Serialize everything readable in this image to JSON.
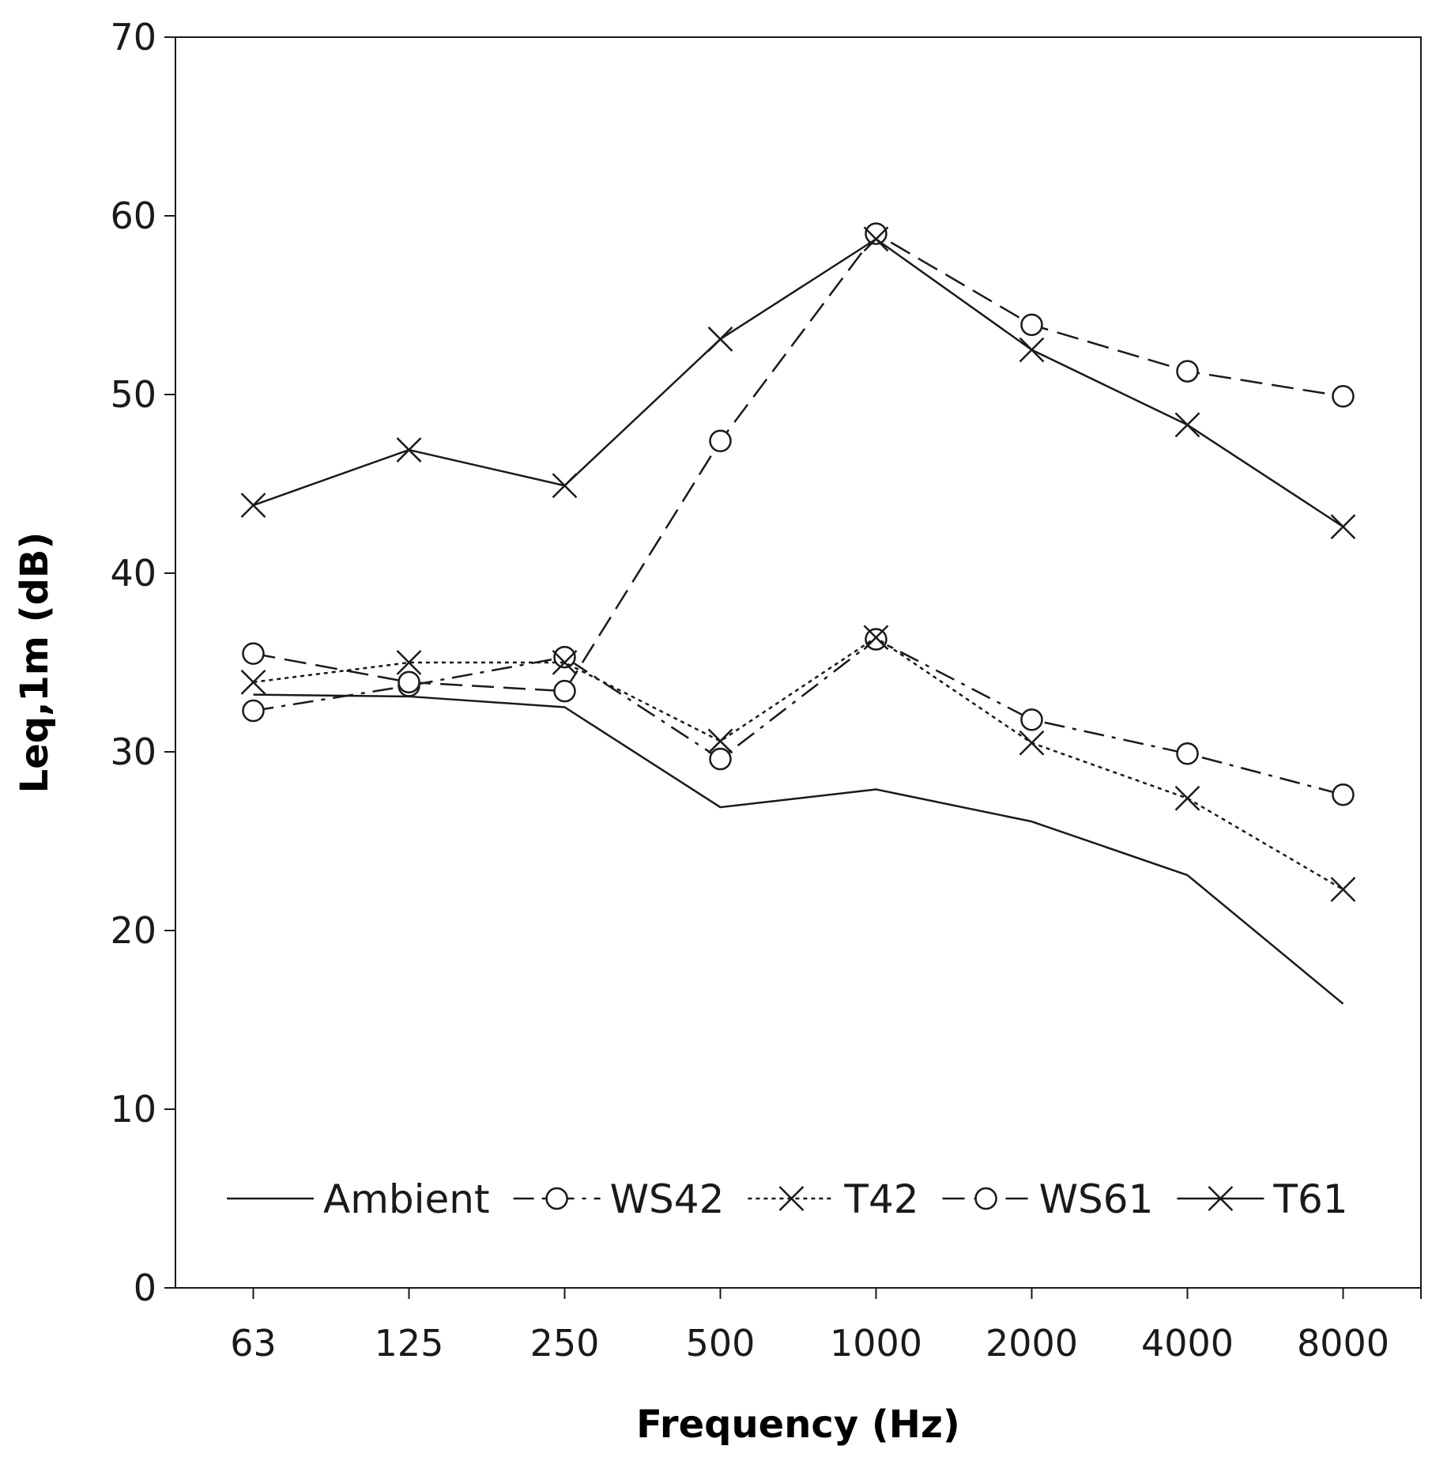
{
  "chart_data": {
    "type": "line",
    "xlabel": "Frequency (Hz)",
    "ylabel": "Leq,1m (dB)",
    "ylim": [
      0,
      70
    ],
    "yticks": [
      0,
      10,
      20,
      30,
      40,
      50,
      60,
      70
    ],
    "categories": [
      "63",
      "125",
      "250",
      "500",
      "1000",
      "2000",
      "4000",
      "8000"
    ],
    "grid": false,
    "legend_position": "bottom-inside",
    "series": [
      {
        "name": "Ambient",
        "values": [
          33.2,
          33.1,
          32.5,
          26.9,
          27.9,
          26.1,
          23.1,
          15.9
        ],
        "marker": "none",
        "dash": "solid"
      },
      {
        "name": "WS42",
        "values": [
          32.3,
          33.7,
          35.3,
          29.6,
          36.3,
          31.8,
          29.9,
          27.6
        ],
        "marker": "circle",
        "dash": "dashdot"
      },
      {
        "name": "T42",
        "values": [
          33.9,
          35.0,
          35.0,
          30.6,
          36.4,
          30.5,
          27.4,
          22.3
        ],
        "marker": "x",
        "dash": "dotted"
      },
      {
        "name": "WS61",
        "values": [
          35.5,
          33.9,
          33.4,
          47.4,
          59.0,
          53.9,
          51.3,
          49.9
        ],
        "marker": "circle",
        "dash": "longdash"
      },
      {
        "name": "T61",
        "values": [
          43.8,
          46.9,
          44.9,
          53.1,
          58.7,
          52.5,
          48.3,
          42.6
        ],
        "marker": "x",
        "dash": "solid"
      }
    ]
  }
}
